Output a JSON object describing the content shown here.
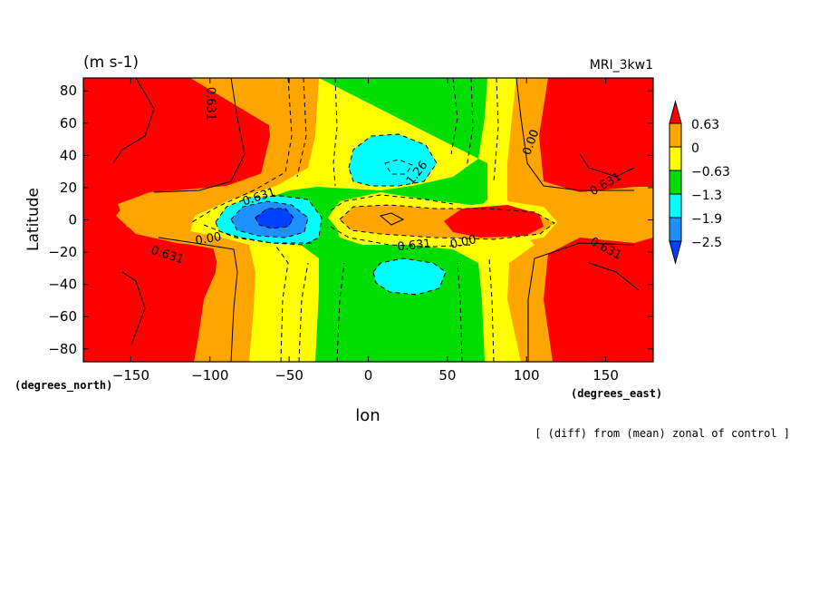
{
  "chart_data": {
    "type": "heatmap",
    "title_left": "(m s-1)",
    "title_right": "MRI_3kw1",
    "xlabel": "lon",
    "ylabel": "Latitude",
    "x_unit": "(degrees_east)",
    "y_unit": "(degrees_north)",
    "footnote": "[ (diff) from (mean) zonal of control ]",
    "xlim": [
      -180,
      180
    ],
    "ylim": [
      -88,
      88
    ],
    "x_ticks": [
      -150,
      -100,
      -50,
      0,
      50,
      100,
      150
    ],
    "y_ticks": [
      -80,
      -60,
      -40,
      -20,
      0,
      20,
      40,
      60,
      80
    ],
    "x_tick_labels": [
      "−150",
      "−100",
      "−50",
      "0",
      "50",
      "100",
      "150"
    ],
    "y_tick_labels": [
      "−80",
      "−60",
      "−40",
      "−20",
      "0",
      "20",
      "40",
      "60",
      "80"
    ],
    "colorbar": {
      "labels": [
        "0.63",
        "0",
        "−0.63",
        "−1.3",
        "−1.9",
        "−2.5"
      ],
      "colors": [
        "#ff0000",
        "#ffa500",
        "#ffff00",
        "#00dd00",
        "#00ffff",
        "#1e90ff",
        "#0040ff"
      ]
    },
    "contour_labels": [
      {
        "text": "0.631",
        "lon": -100,
        "lat": 72,
        "rot": 90
      },
      {
        "text": "0.631",
        "lon": -69,
        "lat": 14,
        "rot": -18
      },
      {
        "text": "0.00",
        "lon": -101,
        "lat": -12,
        "rot": -10
      },
      {
        "text": "0.631",
        "lon": -127,
        "lat": -22,
        "rot": 18
      },
      {
        "text": "1.26",
        "lon": 31,
        "lat": 29,
        "rot": -52
      },
      {
        "text": "0.631",
        "lon": 29,
        "lat": -16,
        "rot": -6
      },
      {
        "text": "0.00",
        "lon": 60,
        "lat": -14,
        "rot": -12
      },
      {
        "text": "0.00",
        "lon": 103,
        "lat": 48,
        "rot": -70
      },
      {
        "text": "0.631",
        "lon": 150,
        "lat": 22,
        "rot": -30
      },
      {
        "text": "0.631",
        "lon": 150,
        "lat": -18,
        "rot": 28
      }
    ]
  }
}
